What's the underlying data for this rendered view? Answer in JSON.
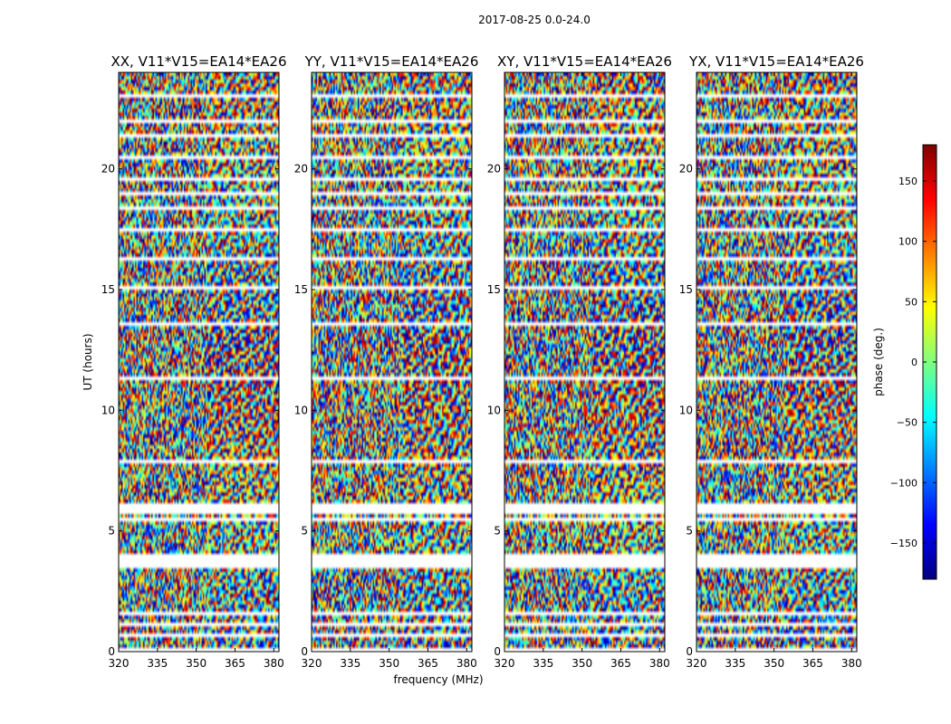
{
  "chart_data": {
    "type": "heatmap",
    "suptitle": "2017-08-25 0.0-24.0",
    "xlabel": "frequency (MHz)",
    "ylabel": "UT (hours)",
    "xlim": [
      320,
      382
    ],
    "ylim": [
      0,
      24
    ],
    "xticks": [
      320,
      335,
      350,
      365,
      380
    ],
    "yticks": [
      0,
      5,
      10,
      15,
      20
    ],
    "panels": [
      {
        "title": "XX, V11*V15=EA14*EA26",
        "polarization": "XX"
      },
      {
        "title": "YY, V11*V15=EA14*EA26",
        "polarization": "YY"
      },
      {
        "title": "XY, V11*V15=EA14*EA26",
        "polarization": "XY"
      },
      {
        "title": "YX, V11*V15=EA14*EA26",
        "polarization": "YX"
      }
    ],
    "value": "phase",
    "colorbar": {
      "label": "phase (deg.)",
      "range": [
        -180,
        180
      ],
      "ticks": [
        150,
        100,
        50,
        0,
        -50,
        -100,
        -150
      ],
      "tick_labels": [
        "150",
        "100",
        "50",
        "0",
        "−50",
        "−100",
        "−150"
      ],
      "colormap": "jet",
      "colors": [
        "#00007f",
        "#0000ff",
        "#007fff",
        "#00ffff",
        "#7fff7f",
        "#ffff00",
        "#ff7f00",
        "#ff0000",
        "#7f0000"
      ]
    },
    "flagged_gaps_hours": [
      [
        0.05,
        0.2
      ],
      [
        0.55,
        0.7
      ],
      [
        1.05,
        1.15
      ],
      [
        1.55,
        1.7
      ],
      [
        3.45,
        4.05
      ],
      [
        5.35,
        5.55
      ],
      [
        5.65,
        6.2
      ],
      [
        7.85,
        8.0
      ],
      [
        11.3,
        11.45
      ],
      [
        13.55,
        13.7
      ],
      [
        14.5,
        14.6
      ],
      [
        15.0,
        15.1
      ],
      [
        16.15,
        16.3
      ],
      [
        17.35,
        17.5
      ],
      [
        18.35,
        18.5
      ],
      [
        18.85,
        19.0
      ],
      [
        19.55,
        19.7
      ],
      [
        20.45,
        20.6
      ],
      [
        21.3,
        21.45
      ],
      [
        21.9,
        22.05
      ],
      [
        23.0,
        23.1
      ]
    ]
  }
}
